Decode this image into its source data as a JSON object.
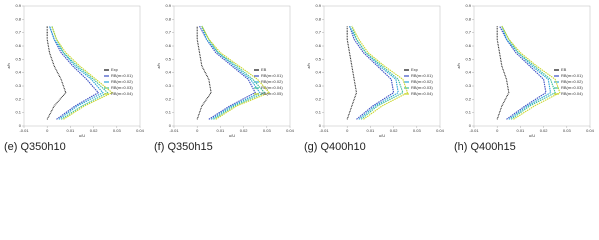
{
  "chart_data": [
    {
      "type": "line",
      "caption": "(e) Q350h10",
      "xlabel": "u/U",
      "ylabel": "z/h",
      "xlim": [
        -0.01,
        0.04
      ],
      "ylim": [
        0,
        0.9
      ],
      "xticks": [
        -0.01,
        0,
        0.01,
        0.02,
        0.03,
        0.04
      ],
      "yticks": [
        0,
        0.1,
        0.2,
        0.3,
        0.4,
        0.5,
        0.6,
        0.7,
        0.8,
        0.9
      ],
      "series": [
        {
          "name": "Exp",
          "color": "#111111",
          "x": [
            0.0,
            0.003,
            0.008,
            0.006,
            0.003,
            0.001,
            0.0,
            0.0
          ],
          "values": [
            0.05,
            0.15,
            0.25,
            0.35,
            0.45,
            0.55,
            0.65,
            0.75
          ]
        },
        {
          "name": "RB(m=0.01)",
          "color": "#3a4fc4",
          "x": [
            0.004,
            0.012,
            0.022,
            0.017,
            0.011,
            0.006,
            0.003,
            0.001
          ],
          "values": [
            0.05,
            0.15,
            0.25,
            0.35,
            0.45,
            0.55,
            0.65,
            0.75
          ]
        },
        {
          "name": "RB(m=0.02)",
          "color": "#2aa6d8",
          "x": [
            0.005,
            0.013,
            0.024,
            0.019,
            0.012,
            0.007,
            0.003,
            0.001
          ],
          "values": [
            0.05,
            0.15,
            0.25,
            0.35,
            0.45,
            0.55,
            0.65,
            0.75
          ]
        },
        {
          "name": "RB(m=0.03)",
          "color": "#3fbf9a",
          "x": [
            0.006,
            0.015,
            0.026,
            0.02,
            0.013,
            0.007,
            0.004,
            0.002
          ],
          "values": [
            0.05,
            0.15,
            0.25,
            0.35,
            0.45,
            0.55,
            0.65,
            0.75
          ]
        },
        {
          "name": "RB(m=0.04)",
          "color": "#c9d62a",
          "x": [
            0.007,
            0.016,
            0.028,
            0.021,
            0.014,
            0.008,
            0.004,
            0.002
          ],
          "values": [
            0.05,
            0.15,
            0.25,
            0.35,
            0.45,
            0.55,
            0.65,
            0.75
          ]
        }
      ]
    },
    {
      "type": "line",
      "caption": "(f) Q350h15",
      "xlabel": "u/U",
      "ylabel": "z/h",
      "xlim": [
        -0.01,
        0.04
      ],
      "ylim": [
        0,
        0.9
      ],
      "xticks": [
        -0.01,
        0,
        0.01,
        0.02,
        0.03,
        0.04
      ],
      "yticks": [
        0,
        0.1,
        0.2,
        0.3,
        0.4,
        0.5,
        0.6,
        0.7,
        0.8,
        0.9
      ],
      "series": [
        {
          "name": "EB",
          "color": "#111111",
          "x": [
            0.0,
            0.002,
            0.006,
            0.005,
            0.002,
            0.001,
            0.0,
            0.0
          ],
          "values": [
            0.05,
            0.15,
            0.25,
            0.35,
            0.45,
            0.55,
            0.65,
            0.75
          ]
        },
        {
          "name": "RB(m=0.01)",
          "color": "#3a4fc4",
          "x": [
            0.005,
            0.014,
            0.025,
            0.022,
            0.015,
            0.008,
            0.004,
            0.001
          ],
          "values": [
            0.05,
            0.15,
            0.25,
            0.35,
            0.45,
            0.55,
            0.65,
            0.75
          ]
        },
        {
          "name": "RB(m=0.02)",
          "color": "#2aa6d8",
          "x": [
            0.006,
            0.015,
            0.027,
            0.023,
            0.016,
            0.009,
            0.004,
            0.002
          ],
          "values": [
            0.05,
            0.15,
            0.25,
            0.35,
            0.45,
            0.55,
            0.65,
            0.75
          ]
        },
        {
          "name": "RB(m=0.04)",
          "color": "#3fbf9a",
          "x": [
            0.007,
            0.016,
            0.029,
            0.024,
            0.017,
            0.009,
            0.005,
            0.002
          ],
          "values": [
            0.05,
            0.15,
            0.25,
            0.35,
            0.45,
            0.55,
            0.65,
            0.75
          ]
        },
        {
          "name": "RB(m=0.05)",
          "color": "#c9d62a",
          "x": [
            0.008,
            0.017,
            0.031,
            0.026,
            0.018,
            0.01,
            0.005,
            0.002
          ],
          "values": [
            0.05,
            0.15,
            0.25,
            0.35,
            0.45,
            0.55,
            0.65,
            0.75
          ]
        }
      ]
    },
    {
      "type": "line",
      "caption": "(g) Q400h10",
      "xlabel": "u/U",
      "ylabel": "z/h",
      "xlim": [
        -0.01,
        0.04
      ],
      "ylim": [
        0,
        0.9
      ],
      "xticks": [
        -0.01,
        0,
        0.01,
        0.02,
        0.03,
        0.04
      ],
      "yticks": [
        0,
        0.1,
        0.2,
        0.3,
        0.4,
        0.5,
        0.6,
        0.7,
        0.8,
        0.9
      ],
      "series": [
        {
          "name": "Exp",
          "color": "#111111",
          "x": [
            0.0,
            0.002,
            0.004,
            0.003,
            0.002,
            0.001,
            0.0,
            0.0
          ],
          "values": [
            0.05,
            0.15,
            0.25,
            0.35,
            0.45,
            0.55,
            0.65,
            0.75
          ]
        },
        {
          "name": "RB(m=0.01)",
          "color": "#3a4fc4",
          "x": [
            0.004,
            0.011,
            0.02,
            0.019,
            0.013,
            0.007,
            0.003,
            0.001
          ],
          "values": [
            0.05,
            0.15,
            0.25,
            0.35,
            0.45,
            0.55,
            0.65,
            0.75
          ]
        },
        {
          "name": "RB(m=0.02)",
          "color": "#2aa6d8",
          "x": [
            0.005,
            0.012,
            0.022,
            0.021,
            0.014,
            0.008,
            0.004,
            0.001
          ],
          "values": [
            0.05,
            0.15,
            0.25,
            0.35,
            0.45,
            0.55,
            0.65,
            0.75
          ]
        },
        {
          "name": "RB(m=0.03)",
          "color": "#3fbf9a",
          "x": [
            0.006,
            0.013,
            0.024,
            0.022,
            0.015,
            0.008,
            0.004,
            0.002
          ],
          "values": [
            0.05,
            0.15,
            0.25,
            0.35,
            0.45,
            0.55,
            0.65,
            0.75
          ]
        },
        {
          "name": "RB(m=0.04)",
          "color": "#c9d62a",
          "x": [
            0.007,
            0.015,
            0.026,
            0.024,
            0.016,
            0.009,
            0.005,
            0.002
          ],
          "values": [
            0.05,
            0.15,
            0.25,
            0.35,
            0.45,
            0.55,
            0.65,
            0.75
          ]
        }
      ]
    },
    {
      "type": "line",
      "caption": "(h) Q400h15",
      "xlabel": "u/U",
      "ylabel": "z/h",
      "xlim": [
        -0.01,
        0.04
      ],
      "ylim": [
        0,
        0.9
      ],
      "xticks": [
        -0.01,
        0,
        0.01,
        0.02,
        0.03,
        0.04
      ],
      "yticks": [
        0,
        0.1,
        0.2,
        0.3,
        0.4,
        0.5,
        0.6,
        0.7,
        0.8,
        0.9
      ],
      "series": [
        {
          "name": "EB",
          "color": "#111111",
          "x": [
            0.0,
            0.002,
            0.005,
            0.004,
            0.002,
            0.001,
            0.0,
            0.0
          ],
          "values": [
            0.05,
            0.15,
            0.25,
            0.35,
            0.45,
            0.55,
            0.65,
            0.75
          ]
        },
        {
          "name": "RB(m=0.01)",
          "color": "#3a4fc4",
          "x": [
            0.004,
            0.012,
            0.021,
            0.02,
            0.014,
            0.008,
            0.004,
            0.001
          ],
          "values": [
            0.05,
            0.15,
            0.25,
            0.35,
            0.45,
            0.55,
            0.65,
            0.75
          ]
        },
        {
          "name": "RB(m=0.02)",
          "color": "#2aa6d8",
          "x": [
            0.005,
            0.013,
            0.023,
            0.022,
            0.015,
            0.009,
            0.004,
            0.002
          ],
          "values": [
            0.05,
            0.15,
            0.25,
            0.35,
            0.45,
            0.55,
            0.65,
            0.75
          ]
        },
        {
          "name": "RB(m=0.03)",
          "color": "#3fbf9a",
          "x": [
            0.006,
            0.014,
            0.025,
            0.023,
            0.016,
            0.009,
            0.005,
            0.002
          ],
          "values": [
            0.05,
            0.15,
            0.25,
            0.35,
            0.45,
            0.55,
            0.65,
            0.75
          ]
        },
        {
          "name": "RB(m=0.04)",
          "color": "#c9d62a",
          "x": [
            0.007,
            0.016,
            0.027,
            0.025,
            0.017,
            0.01,
            0.005,
            0.002
          ],
          "values": [
            0.05,
            0.15,
            0.25,
            0.35,
            0.45,
            0.55,
            0.65,
            0.75
          ]
        }
      ]
    }
  ]
}
